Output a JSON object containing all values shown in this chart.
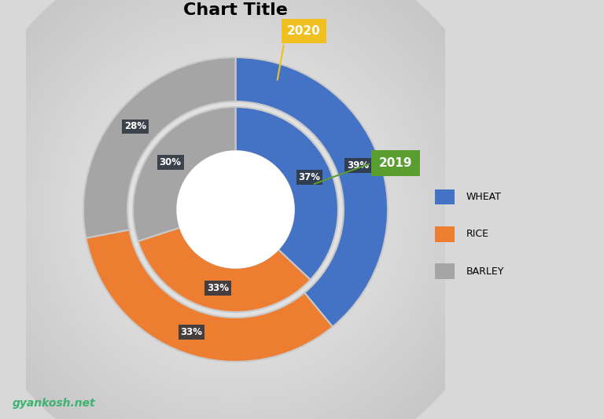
{
  "title": "Chart Title",
  "title_fontsize": 16,
  "outer_ring": {
    "label": "2020",
    "values": [
      39,
      33,
      28
    ],
    "colors": [
      "#4472C4",
      "#ED7D31",
      "#A5A5A5"
    ]
  },
  "inner_ring": {
    "label": "2019",
    "values": [
      37,
      33,
      30
    ],
    "colors": [
      "#4472C4",
      "#ED7D31",
      "#A5A5A5"
    ]
  },
  "categories": [
    "WHEAT",
    "RICE",
    "BARLEY"
  ],
  "legend_colors": [
    "#4472C4",
    "#ED7D31",
    "#A5A5A5"
  ],
  "label_box_color": "#2F3640",
  "annotation_2020_color": "#F0C020",
  "annotation_2020_text": "#FFFFFF",
  "annotation_2019_color": "#5A9E32",
  "annotation_2019_text": "#FFFFFF",
  "watermark": "gyankosh.net",
  "watermark_color": "#3CB371",
  "bg_color": "#D8D8D8",
  "outer_outer_r": 1.38,
  "outer_inner_r": 0.98,
  "inner_outer_r": 0.93,
  "inner_inner_r": 0.53
}
